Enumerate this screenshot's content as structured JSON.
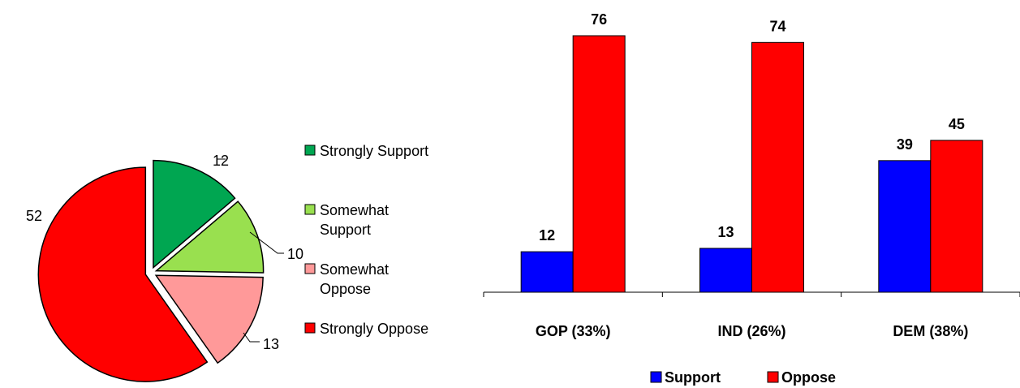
{
  "chart_data": [
    {
      "type": "pie",
      "slices": [
        {
          "label": "Strongly Support",
          "value": 12,
          "color": "#00a651"
        },
        {
          "label": "Somewhat Support",
          "value": 10,
          "color": "#99e04f"
        },
        {
          "label": "Somewhat Oppose",
          "value": 13,
          "color": "#ff9999"
        },
        {
          "label": "Strongly Oppose",
          "value": 52,
          "color": "#ff0000"
        }
      ],
      "legend": {
        "placement": "right",
        "entries": [
          {
            "lines": [
              "Strongly Support"
            ],
            "color": "#00a651"
          },
          {
            "lines": [
              "Somewhat",
              "Support"
            ],
            "color": "#99e04f"
          },
          {
            "lines": [
              "Somewhat",
              "Oppose"
            ],
            "color": "#ff9999"
          },
          {
            "lines": [
              "Strongly Oppose"
            ],
            "color": "#ff0000"
          }
        ]
      }
    },
    {
      "type": "bar",
      "categories": [
        "GOP (33%)",
        "IND (26%)",
        "DEM (38%)"
      ],
      "series": [
        {
          "name": "Support",
          "values": [
            12,
            13,
            39
          ],
          "color": "#0000ff"
        },
        {
          "name": "Oppose",
          "values": [
            76,
            74,
            45
          ],
          "color": "#ff0000"
        }
      ],
      "ylim": [
        0,
        80
      ],
      "grid": false,
      "legend": {
        "placement": "bottom"
      }
    }
  ]
}
